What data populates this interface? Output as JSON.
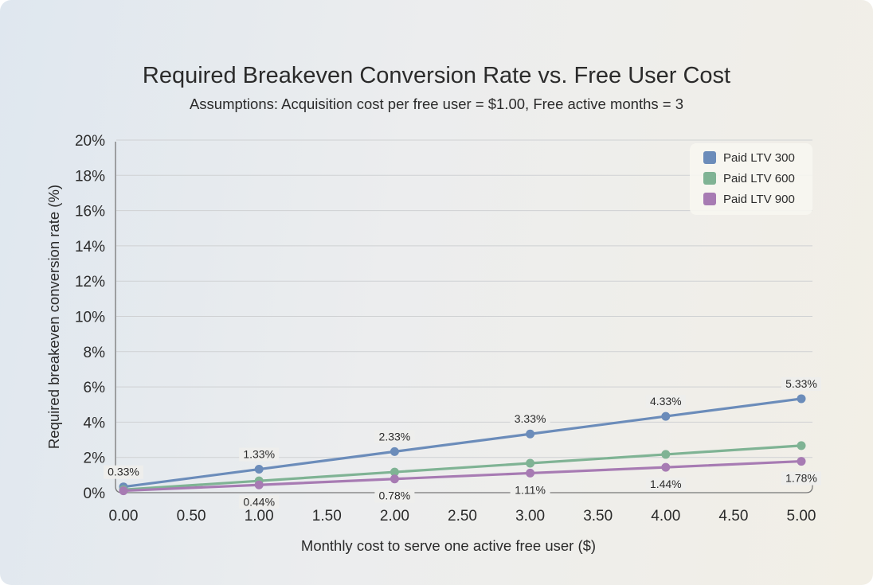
{
  "chart_data": {
    "type": "line",
    "title": "Required Breakeven Conversion Rate vs. Free User Cost",
    "subtitle": "Assumptions: Acquisition cost per free user = $1.00, Free active months = 3",
    "xlabel": "Monthly cost to serve one active free user ($)",
    "ylabel": "Required breakeven conversion rate (%)",
    "xlim": [
      0,
      5
    ],
    "ylim": [
      0,
      20
    ],
    "x_ticks": [
      "0.00",
      "0.50",
      "1.00",
      "1.50",
      "2.00",
      "2.50",
      "3.00",
      "3.50",
      "4.00",
      "4.50",
      "5.00"
    ],
    "y_ticks": [
      "0%",
      "2%",
      "4%",
      "6%",
      "8%",
      "10%",
      "12%",
      "14%",
      "16%",
      "18%",
      "20%"
    ],
    "grid": true,
    "legend_position": "top-right",
    "x": [
      0,
      1,
      2,
      3,
      4,
      5
    ],
    "series": [
      {
        "name": "Paid LTV 300",
        "color": "#6b8cba",
        "values": [
          0.33,
          1.33,
          2.33,
          3.33,
          4.33,
          5.33
        ],
        "labels": [
          "0.33%",
          "1.33%",
          "2.33%",
          "3.33%",
          "4.33%",
          "5.33%"
        ],
        "label_position": "above"
      },
      {
        "name": "Paid LTV 600",
        "color": "#7fb394",
        "values": [
          0.17,
          0.67,
          1.17,
          1.67,
          2.17,
          2.67
        ],
        "labels": [],
        "label_position": "none"
      },
      {
        "name": "Paid LTV 900",
        "color": "#a77bb3",
        "values": [
          0.11,
          0.44,
          0.78,
          1.11,
          1.44,
          1.78
        ],
        "labels": [
          "",
          "0.44%",
          "0.78%",
          "1.11%",
          "1.44%",
          "1.78%"
        ],
        "label_position": "below"
      }
    ]
  }
}
